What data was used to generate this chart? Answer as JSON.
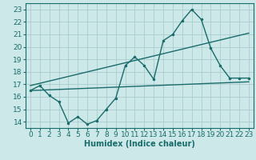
{
  "xlabel": "Humidex (Indice chaleur)",
  "background_color": "#cce8e8",
  "grid_color": "#aacccc",
  "line_color": "#1a6b6b",
  "xlim": [
    -0.5,
    23.5
  ],
  "ylim": [
    13.5,
    23.5
  ],
  "xticks": [
    0,
    1,
    2,
    3,
    4,
    5,
    6,
    7,
    8,
    9,
    10,
    11,
    12,
    13,
    14,
    15,
    16,
    17,
    18,
    19,
    20,
    21,
    22,
    23
  ],
  "yticks": [
    14,
    15,
    16,
    17,
    18,
    19,
    20,
    21,
    22,
    23
  ],
  "line1_x": [
    0,
    1,
    2,
    3,
    4,
    5,
    6,
    7,
    8,
    9,
    10,
    11,
    12,
    13,
    14,
    15,
    16,
    17,
    18,
    19,
    20,
    21,
    22,
    23
  ],
  "line1_y": [
    16.5,
    16.9,
    16.1,
    15.6,
    13.9,
    14.4,
    13.8,
    14.1,
    15.0,
    15.9,
    18.5,
    19.2,
    18.5,
    17.4,
    20.5,
    21.0,
    22.1,
    23.0,
    22.2,
    19.9,
    18.5,
    17.5,
    17.5,
    17.5
  ],
  "line2_x": [
    0,
    23
  ],
  "line2_y": [
    16.5,
    17.2
  ],
  "line3_x": [
    0,
    23
  ],
  "line3_y": [
    16.9,
    21.1
  ],
  "marker_size": 3.0,
  "linewidth": 1.0,
  "xlabel_fontsize": 7,
  "tick_fontsize": 6.5
}
